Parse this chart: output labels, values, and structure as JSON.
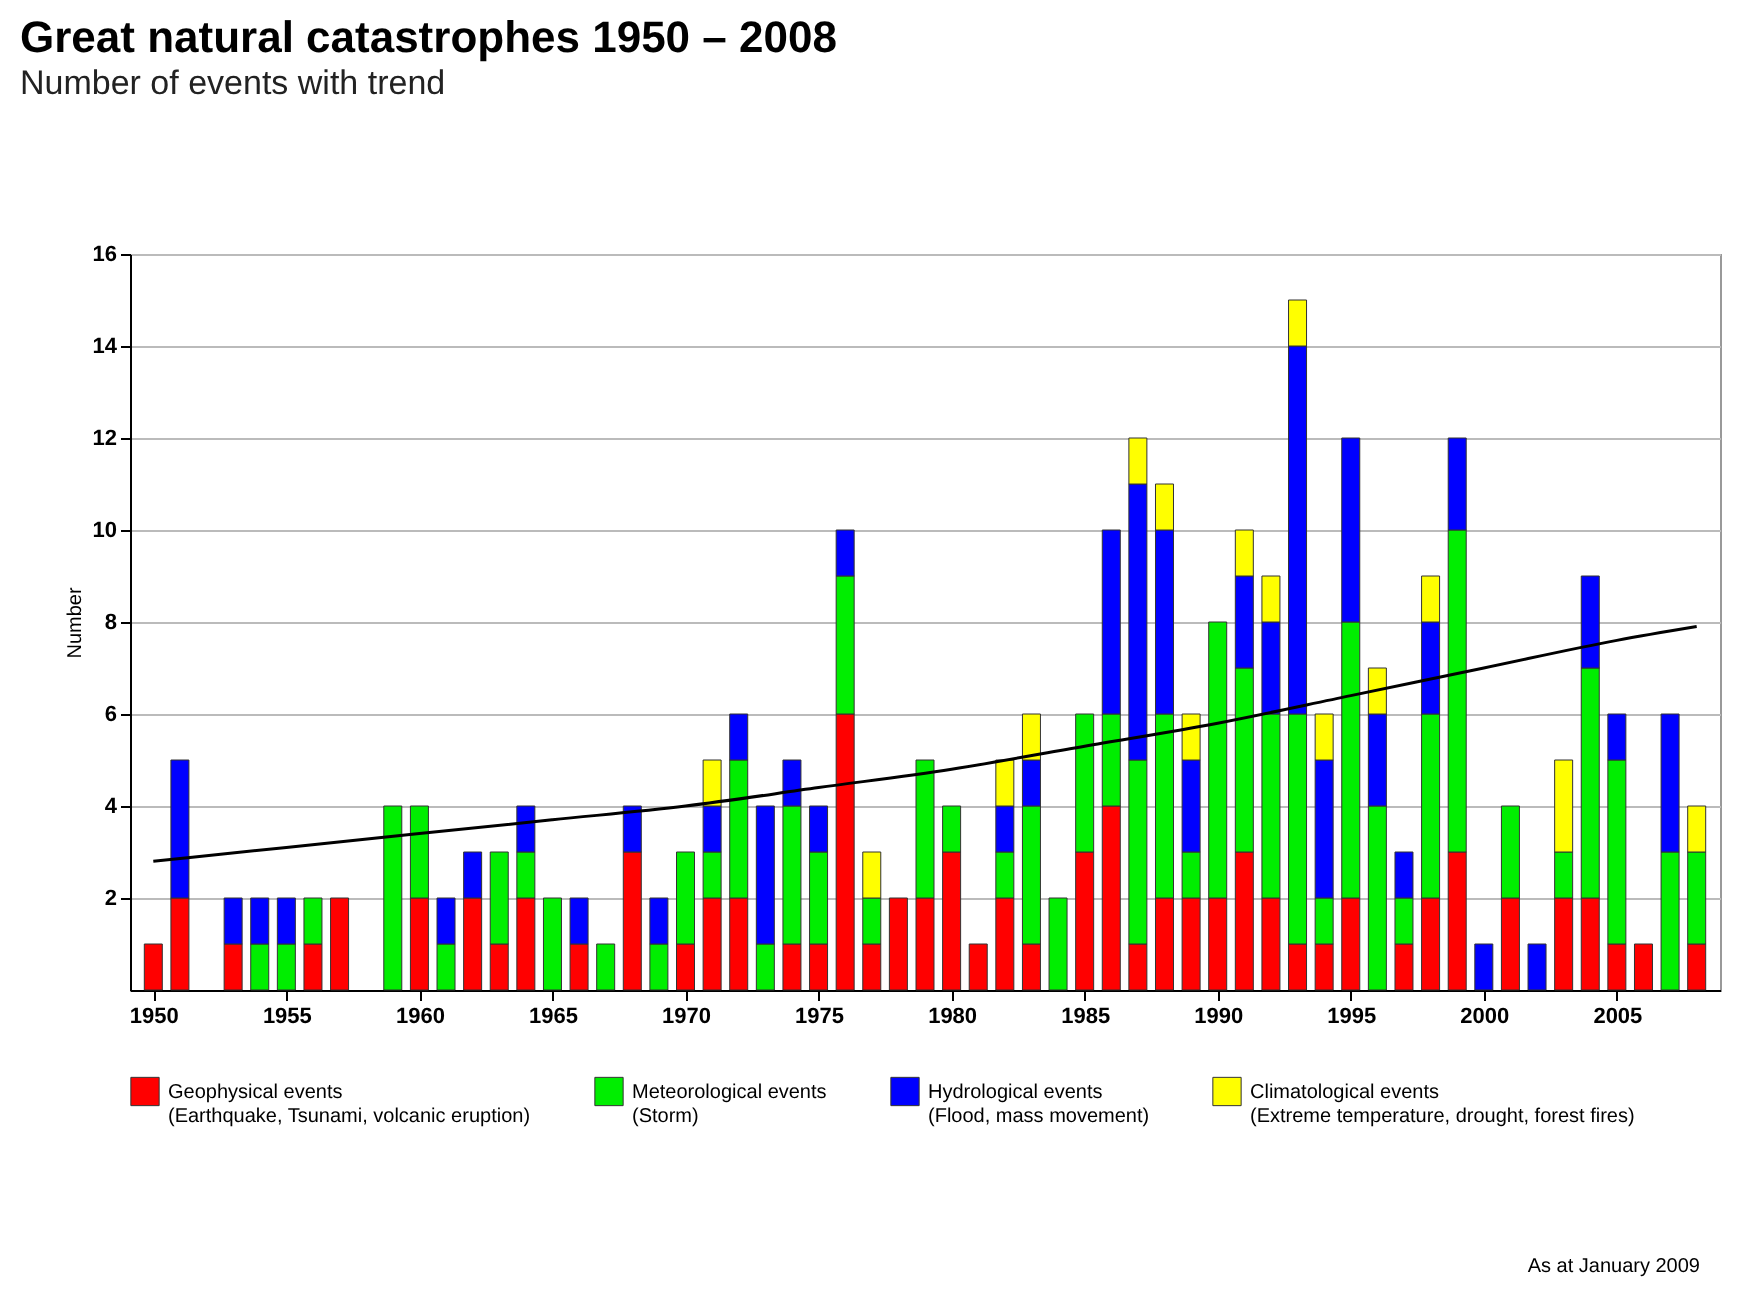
{
  "chart_data": {
    "type": "bar",
    "title": "Great natural catastrophes 1950 – 2008",
    "subtitle": "Number of events with trend",
    "ylabel": "Number",
    "annotations": [
      "As at January 2009"
    ],
    "x": [
      1950,
      1951,
      1953,
      1954,
      1955,
      1956,
      1957,
      1959,
      1960,
      1961,
      1962,
      1963,
      1964,
      1965,
      1966,
      1967,
      1968,
      1969,
      1970,
      1971,
      1972,
      1973,
      1974,
      1975,
      1976,
      1977,
      1978,
      1979,
      1980,
      1981,
      1982,
      1983,
      1984,
      1985,
      1986,
      1987,
      1988,
      1989,
      1990,
      1991,
      1992,
      1993,
      1994,
      1995,
      1996,
      1997,
      1998,
      1999,
      2000,
      2001,
      2002,
      2003,
      2004,
      2005,
      2006,
      2007,
      2008
    ],
    "stacked": true,
    "series": [
      {
        "name": "Geophysical events (Earthquake, Tsunami, volcanic eruption)",
        "color": "#ff0000",
        "values": [
          1,
          2,
          1,
          0,
          0,
          1,
          2,
          0,
          2,
          0,
          2,
          1,
          2,
          0,
          1,
          0,
          3,
          0,
          1,
          2,
          2,
          0,
          1,
          1,
          6,
          1,
          2,
          2,
          3,
          1,
          2,
          1,
          0,
          3,
          4,
          1,
          2,
          2,
          2,
          3,
          2,
          1,
          1,
          2,
          0,
          1,
          2,
          3,
          0,
          2,
          0,
          2,
          2,
          1,
          1,
          0,
          1
        ]
      },
      {
        "name": "Meteorological events (Storm)",
        "color": "#00ee00",
        "values": [
          0,
          0,
          0,
          1,
          1,
          1,
          0,
          4,
          2,
          1,
          0,
          2,
          1,
          2,
          0,
          1,
          0,
          1,
          2,
          1,
          3,
          1,
          3,
          2,
          3,
          1,
          0,
          3,
          1,
          0,
          1,
          3,
          2,
          3,
          2,
          4,
          4,
          1,
          6,
          4,
          4,
          5,
          1,
          6,
          4,
          1,
          4,
          7,
          0,
          2,
          0,
          1,
          5,
          4,
          0,
          3,
          2
        ]
      },
      {
        "name": "Hydrological events (Flood, mass movement)",
        "color": "#0000ff",
        "values": [
          0,
          3,
          1,
          1,
          1,
          0,
          0,
          0,
          0,
          1,
          1,
          0,
          1,
          0,
          1,
          0,
          1,
          1,
          0,
          1,
          1,
          3,
          1,
          1,
          1,
          0,
          0,
          0,
          0,
          0,
          1,
          1,
          0,
          0,
          4,
          6,
          4,
          2,
          0,
          2,
          2,
          8,
          3,
          4,
          2,
          1,
          2,
          2,
          1,
          0,
          1,
          0,
          2,
          1,
          0,
          3,
          0
        ]
      },
      {
        "name": "Climatological events (Extreme temperature, drought, forest fires)",
        "color": "#ffff00",
        "values": [
          0,
          0,
          0,
          0,
          0,
          0,
          0,
          0,
          0,
          0,
          0,
          0,
          0,
          0,
          0,
          0,
          0,
          0,
          0,
          1,
          0,
          0,
          0,
          0,
          0,
          1,
          0,
          0,
          0,
          0,
          1,
          1,
          0,
          0,
          0,
          1,
          1,
          1,
          0,
          1,
          1,
          1,
          1,
          0,
          1,
          0,
          1,
          0,
          0,
          0,
          0,
          2,
          0,
          0,
          0,
          0,
          1
        ]
      },
      {
        "type": "line",
        "color": "#000000",
        "x": [
          1950,
          1955,
          1960,
          1965,
          1970,
          1975,
          1980,
          1985,
          1990,
          1995,
          2000,
          2005,
          2008
        ],
        "values": [
          2.8,
          3.1,
          3.4,
          3.7,
          4.0,
          4.4,
          4.8,
          5.3,
          5.8,
          6.4,
          7.0,
          7.6,
          7.9
        ]
      }
    ],
    "xlim": [
      1949.5,
      2008.5
    ],
    "xticks": [
      1950,
      1955,
      1960,
      1965,
      1970,
      1975,
      1980,
      1985,
      1990,
      1995,
      2000,
      2005
    ],
    "ylim": [
      0,
      16
    ],
    "yticks": [
      2,
      4,
      6,
      8,
      10,
      12,
      14,
      16
    ],
    "grid": "y",
    "legend": "bottom"
  }
}
